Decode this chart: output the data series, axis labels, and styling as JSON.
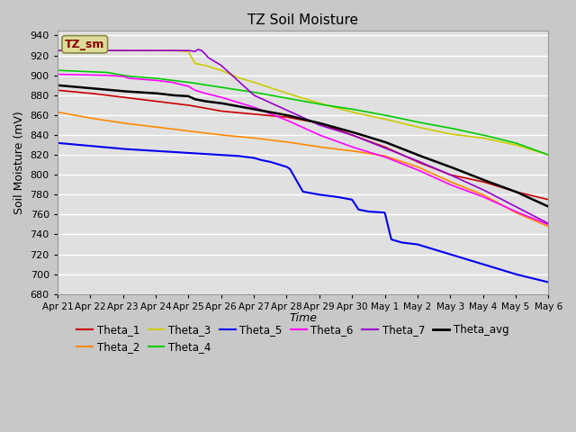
{
  "title": "TZ Soil Moisture",
  "xlabel": "Time",
  "ylabel": "Soil Moisture (mV)",
  "ylim": [
    680,
    945
  ],
  "yticks": [
    680,
    700,
    720,
    740,
    760,
    780,
    800,
    820,
    840,
    860,
    880,
    900,
    920,
    940
  ],
  "fig_bg_color": "#c8c8c8",
  "plot_bg_color": "#e0e0e0",
  "grid_color": "#ffffff",
  "series": {
    "Theta_1": {
      "color": "#cc0000",
      "lw": 1.2
    },
    "Theta_2": {
      "color": "#ff8800",
      "lw": 1.2
    },
    "Theta_3": {
      "color": "#cccc00",
      "lw": 1.2
    },
    "Theta_4": {
      "color": "#00cc00",
      "lw": 1.2
    },
    "Theta_5": {
      "color": "#0000ee",
      "lw": 1.5
    },
    "Theta_6": {
      "color": "#ff00ff",
      "lw": 1.2
    },
    "Theta_7": {
      "color": "#9900cc",
      "lw": 1.2
    },
    "Theta_avg": {
      "color": "#000000",
      "lw": 1.8
    }
  },
  "legend_box_facecolor": "#dddd99",
  "legend_box_edgecolor": "#888844",
  "legend_text": "TZ_sm",
  "xtick_labels": [
    "Apr 21",
    "Apr 22",
    "Apr 23",
    "Apr 24",
    "Apr 25",
    "Apr 26",
    "Apr 27",
    "Apr 28",
    "Apr 29",
    "Apr 30",
    "May 1",
    "May 2",
    "May 3",
    "May 4",
    "May 5",
    "May 6"
  ]
}
